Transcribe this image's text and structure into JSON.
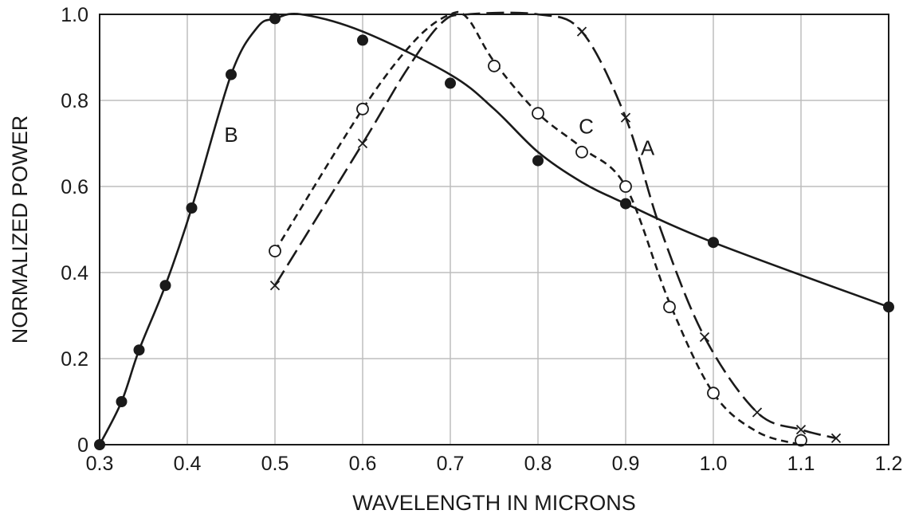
{
  "chart_data": {
    "type": "line",
    "xlabel": "WAVELENGTH IN MICRONS",
    "ylabel": "NORMALIZED POWER",
    "xlim": [
      0.3,
      1.2
    ],
    "ylim": [
      0,
      1.0
    ],
    "grid": true,
    "x_ticks": [
      0.3,
      0.4,
      0.5,
      0.6,
      0.7,
      0.8,
      0.9,
      1.0,
      1.1,
      1.2
    ],
    "x_tick_labels": [
      "0.3",
      "0.4",
      "0.5",
      "0.6",
      "0.7",
      "0.8",
      "0.9",
      "1.0",
      "1.1",
      "1.2"
    ],
    "y_ticks": [
      0,
      0.2,
      0.4,
      0.6,
      0.8,
      1.0
    ],
    "y_tick_labels": [
      "0",
      "0.2",
      "0.4",
      "0.6",
      "0.8",
      "1.0"
    ],
    "colors": {
      "ink": "#1a1a1a",
      "grid": "#bdbdbd",
      "background": "#ffffff"
    },
    "series": [
      {
        "name": "B",
        "line_style": "solid",
        "marker": "filled-circle",
        "points": [
          [
            0.3,
            0.0
          ],
          [
            0.325,
            0.1
          ],
          [
            0.345,
            0.22
          ],
          [
            0.375,
            0.37
          ],
          [
            0.405,
            0.55
          ],
          [
            0.45,
            0.86
          ],
          [
            0.5,
            0.99
          ],
          [
            0.6,
            0.94
          ],
          [
            0.7,
            0.84
          ],
          [
            0.8,
            0.66
          ],
          [
            0.9,
            0.56
          ],
          [
            1.0,
            0.47
          ],
          [
            1.2,
            0.32
          ]
        ],
        "curve": [
          [
            0.3,
            0.0
          ],
          [
            0.325,
            0.1
          ],
          [
            0.345,
            0.22
          ],
          [
            0.375,
            0.37
          ],
          [
            0.405,
            0.55
          ],
          [
            0.45,
            0.86
          ],
          [
            0.48,
            0.97
          ],
          [
            0.5,
            0.99
          ],
          [
            0.53,
            1.0
          ],
          [
            0.6,
            0.96
          ],
          [
            0.7,
            0.86
          ],
          [
            0.75,
            0.78
          ],
          [
            0.8,
            0.68
          ],
          [
            0.85,
            0.61
          ],
          [
            0.9,
            0.56
          ],
          [
            1.0,
            0.47
          ],
          [
            1.2,
            0.32
          ]
        ]
      },
      {
        "name": "C",
        "line_style": "short-dash",
        "marker": "open-circle",
        "points": [
          [
            0.5,
            0.45
          ],
          [
            0.6,
            0.78
          ],
          [
            0.75,
            0.88
          ],
          [
            0.8,
            0.77
          ],
          [
            0.85,
            0.68
          ],
          [
            0.9,
            0.6
          ],
          [
            0.95,
            0.32
          ],
          [
            1.0,
            0.12
          ],
          [
            1.1,
            0.01
          ]
        ],
        "curve": [
          [
            0.5,
            0.45
          ],
          [
            0.6,
            0.78
          ],
          [
            0.66,
            0.94
          ],
          [
            0.7,
            1.0
          ],
          [
            0.72,
            0.99
          ],
          [
            0.75,
            0.89
          ],
          [
            0.8,
            0.77
          ],
          [
            0.85,
            0.69
          ],
          [
            0.9,
            0.6
          ],
          [
            0.95,
            0.33
          ],
          [
            1.0,
            0.12
          ],
          [
            1.05,
            0.03
          ],
          [
            1.1,
            0.0
          ]
        ]
      },
      {
        "name": "A",
        "line_style": "long-dash",
        "marker": "x",
        "points": [
          [
            0.5,
            0.37
          ],
          [
            0.6,
            0.7
          ],
          [
            0.85,
            0.96
          ],
          [
            0.9,
            0.76
          ],
          [
            0.99,
            0.25
          ],
          [
            1.05,
            0.075
          ],
          [
            1.1,
            0.035
          ],
          [
            1.14,
            0.015
          ]
        ],
        "curve": [
          [
            0.5,
            0.37
          ],
          [
            0.6,
            0.7
          ],
          [
            0.65,
            0.87
          ],
          [
            0.69,
            0.98
          ],
          [
            0.72,
            1.0
          ],
          [
            0.8,
            1.0
          ],
          [
            0.85,
            0.96
          ],
          [
            0.9,
            0.76
          ],
          [
            0.94,
            0.5
          ],
          [
            0.99,
            0.25
          ],
          [
            1.05,
            0.075
          ],
          [
            1.1,
            0.035
          ],
          [
            1.14,
            0.015
          ]
        ]
      }
    ],
    "annotations": [
      {
        "text": "B",
        "x": 0.45,
        "y": 0.72
      },
      {
        "text": "C",
        "x": 0.855,
        "y": 0.74
      },
      {
        "text": "A",
        "x": 0.925,
        "y": 0.69
      }
    ]
  }
}
